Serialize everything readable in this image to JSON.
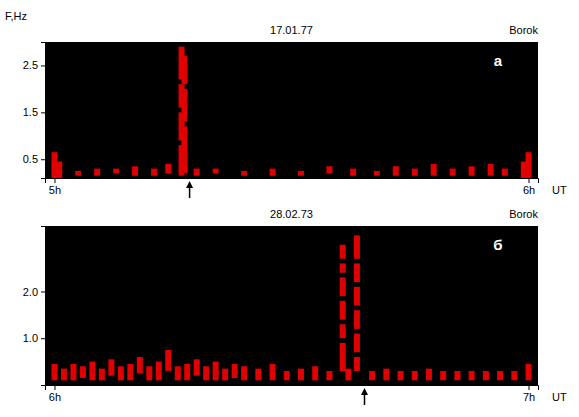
{
  "chart_data": [
    {
      "type": "range",
      "title": "17.01.77",
      "subtitle": "Borok",
      "panel": "а",
      "y_label": "F,Hz",
      "x_label": "UT",
      "color": "#e00000",
      "grid": false,
      "xlim": [
        4.98,
        6.02
      ],
      "xticks": [
        {
          "value": 5,
          "label": "5h"
        },
        {
          "value": 6,
          "label": "6h"
        }
      ],
      "ylim": [
        0.1,
        3.0
      ],
      "yticks": [
        0.5,
        1.5,
        2.5
      ],
      "arrow_x": 5.285,
      "x": [
        5.0,
        5.01,
        5.05,
        5.09,
        5.13,
        5.17,
        5.21,
        5.24,
        5.268,
        5.268,
        5.268,
        5.268,
        5.274,
        5.274,
        5.274,
        5.3,
        5.34,
        5.4,
        5.46,
        5.52,
        5.58,
        5.63,
        5.68,
        5.72,
        5.76,
        5.8,
        5.84,
        5.88,
        5.92,
        5.95,
        5.99,
        6.0
      ],
      "low": [
        0.1,
        0.1,
        0.15,
        0.15,
        0.2,
        0.15,
        0.15,
        0.2,
        0.15,
        0.9,
        1.6,
        2.2,
        0.2,
        1.3,
        2.1,
        0.15,
        0.2,
        0.15,
        0.15,
        0.15,
        0.2,
        0.15,
        0.15,
        0.15,
        0.15,
        0.15,
        0.15,
        0.15,
        0.15,
        0.15,
        0.1,
        0.1
      ],
      "high": [
        0.65,
        0.45,
        0.25,
        0.3,
        0.3,
        0.35,
        0.3,
        0.4,
        0.8,
        1.5,
        2.1,
        2.9,
        1.2,
        2.0,
        2.7,
        0.3,
        0.3,
        0.25,
        0.3,
        0.25,
        0.35,
        0.3,
        0.25,
        0.35,
        0.3,
        0.4,
        0.3,
        0.35,
        0.4,
        0.3,
        0.45,
        0.65
      ]
    },
    {
      "type": "range",
      "title": "28.02.73",
      "subtitle": "Borok",
      "panel": "б",
      "x_label": "UT",
      "color": "#e00000",
      "grid": false,
      "xlim": [
        5.98,
        7.02
      ],
      "xticks": [
        {
          "value": 6,
          "label": "6h"
        },
        {
          "value": 7,
          "label": "7h"
        }
      ],
      "ylim": [
        0,
        3.4
      ],
      "yticks": [
        {
          "value": 1,
          "label": "1.0"
        },
        {
          "value": 2,
          "label": "2.0"
        }
      ],
      "arrow_x": 6.654,
      "x": [
        6.0,
        6.02,
        6.04,
        6.06,
        6.08,
        6.1,
        6.12,
        6.14,
        6.16,
        6.18,
        6.2,
        6.22,
        6.24,
        6.26,
        6.28,
        6.3,
        6.32,
        6.34,
        6.36,
        6.38,
        6.4,
        6.43,
        6.46,
        6.49,
        6.52,
        6.55,
        6.58,
        6.62,
        6.67,
        6.7,
        6.73,
        6.76,
        6.79,
        6.82,
        6.85,
        6.88,
        6.91,
        6.94,
        6.97,
        7.0,
        6.608,
        6.608,
        6.608,
        6.608,
        6.608,
        6.608,
        6.638,
        6.638,
        6.638,
        6.638,
        6.638,
        6.638
      ],
      "low": [
        0.1,
        0.1,
        0.1,
        0.15,
        0.1,
        0.1,
        0.2,
        0.1,
        0.1,
        0.25,
        0.1,
        0.1,
        0.3,
        0.1,
        0.1,
        0.2,
        0.1,
        0.1,
        0.1,
        0.15,
        0.1,
        0.1,
        0.1,
        0.1,
        0.1,
        0.1,
        0.1,
        0.1,
        0.1,
        0.1,
        0.1,
        0.1,
        0.1,
        0.1,
        0.1,
        0.1,
        0.1,
        0.1,
        0.1,
        0.1,
        0.3,
        1.0,
        1.4,
        1.9,
        2.4,
        2.7,
        0.3,
        0.7,
        1.2,
        1.7,
        2.2,
        2.7
      ],
      "high": [
        0.45,
        0.35,
        0.45,
        0.4,
        0.5,
        0.35,
        0.55,
        0.4,
        0.45,
        0.6,
        0.4,
        0.5,
        0.75,
        0.4,
        0.45,
        0.55,
        0.4,
        0.5,
        0.35,
        0.45,
        0.4,
        0.35,
        0.45,
        0.3,
        0.35,
        0.4,
        0.3,
        0.35,
        0.3,
        0.35,
        0.3,
        0.3,
        0.35,
        0.3,
        0.3,
        0.3,
        0.3,
        0.3,
        0.3,
        0.45,
        0.9,
        1.3,
        1.8,
        2.3,
        2.6,
        3.0,
        0.6,
        1.1,
        1.6,
        2.1,
        2.6,
        3.2
      ]
    }
  ]
}
